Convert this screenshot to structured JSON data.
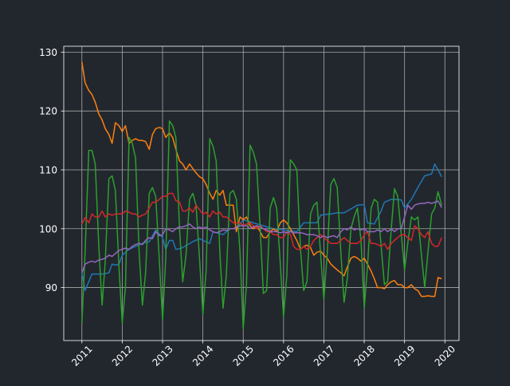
{
  "chart_data": {
    "type": "line",
    "title": "",
    "xlabel": "",
    "ylabel": "",
    "xlim": [
      2010.55,
      2020.35
    ],
    "ylim": [
      81,
      131
    ],
    "xticks": [
      2011,
      2012,
      2013,
      2014,
      2015,
      2016,
      2017,
      2018,
      2019,
      2020
    ],
    "xtick_labels": [
      "2011",
      "2012",
      "2013",
      "2014",
      "2015",
      "2016",
      "2017",
      "2018",
      "2019",
      "2020"
    ],
    "yticks": [
      90,
      100,
      110,
      120,
      130
    ],
    "ytick_labels": [
      "90",
      "100",
      "110",
      "120",
      "130"
    ],
    "grid": true,
    "legend": "none",
    "colors": {
      "background": "#22272e",
      "axes_face": "#22272e",
      "axes_edge": "#ffffff",
      "grid": "#a8a8a8",
      "text": "#ffffff"
    },
    "series": [
      {
        "color": "#1f77b4",
        "x": [
          2011.0,
          2011.08,
          2011.25,
          2011.5,
          2011.67,
          2011.75,
          2011.83,
          2011.92,
          2012.0,
          2012.17,
          2012.33,
          2012.5,
          2012.67,
          2012.83,
          2013.0,
          2013.08,
          2013.17,
          2013.25,
          2013.33,
          2013.42,
          2013.5,
          2013.75,
          2013.92,
          2014.0,
          2014.17,
          2014.25,
          2014.5,
          2014.67,
          2014.83,
          2015.0,
          2015.25,
          2015.5,
          2015.75,
          2016.0,
          2016.33,
          2016.5,
          2016.83,
          2016.92,
          2017.17,
          2017.33,
          2017.5,
          2017.83,
          2018.0,
          2018.08,
          2018.25,
          2018.42,
          2018.5,
          2018.67,
          2018.92,
          2019.0,
          2019.17,
          2019.33,
          2019.5,
          2019.67,
          2019.75,
          2019.83,
          2019.92
        ],
        "y": [
          92.5,
          89.5,
          92.3,
          92.3,
          92.5,
          94.0,
          93.8,
          94.0,
          95.5,
          96.5,
          97.0,
          97.5,
          97.8,
          99.8,
          98.5,
          96.5,
          98.0,
          98.0,
          96.5,
          96.6,
          96.8,
          97.8,
          98.3,
          98.0,
          97.5,
          99.5,
          99.0,
          100.0,
          100.0,
          101.5,
          101.0,
          100.5,
          100.0,
          99.8,
          99.5,
          101.0,
          101.0,
          102.3,
          102.5,
          102.7,
          102.7,
          104.0,
          104.1,
          101.0,
          100.8,
          103.0,
          104.5,
          105.0,
          104.9,
          103.5,
          105.0,
          107.0,
          109.0,
          109.3,
          111.0,
          110.0,
          108.8
        ]
      },
      {
        "color": "#ff7f0e",
        "x": [
          2011.0,
          2011.08,
          2011.17,
          2011.25,
          2011.33,
          2011.42,
          2011.5,
          2011.58,
          2011.67,
          2011.75,
          2011.83,
          2011.92,
          2012.0,
          2012.08,
          2012.17,
          2012.25,
          2012.33,
          2012.42,
          2012.5,
          2012.58,
          2012.67,
          2012.75,
          2012.83,
          2012.92,
          2013.0,
          2013.08,
          2013.17,
          2013.25,
          2013.33,
          2013.42,
          2013.5,
          2013.58,
          2013.67,
          2013.75,
          2013.83,
          2013.92,
          2014.0,
          2014.08,
          2014.17,
          2014.25,
          2014.33,
          2014.42,
          2014.5,
          2014.58,
          2014.67,
          2014.75,
          2014.83,
          2014.92,
          2015.0,
          2015.08,
          2015.17,
          2015.25,
          2015.33,
          2015.42,
          2015.5,
          2015.58,
          2015.67,
          2015.75,
          2015.83,
          2015.92,
          2016.0,
          2016.08,
          2016.17,
          2016.25,
          2016.33,
          2016.42,
          2016.5,
          2016.58,
          2016.67,
          2016.75,
          2016.83,
          2016.92,
          2017.0,
          2017.08,
          2017.17,
          2017.25,
          2017.33,
          2017.42,
          2017.5,
          2017.58,
          2017.67,
          2017.75,
          2017.83,
          2017.92,
          2018.0,
          2018.08,
          2018.17,
          2018.25,
          2018.33,
          2018.42,
          2018.5,
          2018.58,
          2018.67,
          2018.75,
          2018.83,
          2018.92,
          2019.0,
          2019.08,
          2019.17,
          2019.25,
          2019.33,
          2019.42,
          2019.5,
          2019.58,
          2019.67,
          2019.75,
          2019.83,
          2019.92
        ],
        "y": [
          128.3,
          124.8,
          123.5,
          122.8,
          121.5,
          119.5,
          118.5,
          117.0,
          116.0,
          114.5,
          118.0,
          117.5,
          116.5,
          117.5,
          114.5,
          115.0,
          115.3,
          115.0,
          115.0,
          114.8,
          113.5,
          116.0,
          117.0,
          117.2,
          117.0,
          115.5,
          116.3,
          115.5,
          113.5,
          111.5,
          111.0,
          110.0,
          111.0,
          110.2,
          109.5,
          108.8,
          108.5,
          107.5,
          106.0,
          105.0,
          106.5,
          105.7,
          106.5,
          104.0,
          104.0,
          104.0,
          99.5,
          102.0,
          101.5,
          102.0,
          100.5,
          100.0,
          100.5,
          99.5,
          98.5,
          98.5,
          99.5,
          100.0,
          99.5,
          101.0,
          101.5,
          101.0,
          100.0,
          99.0,
          98.0,
          96.5,
          97.0,
          97.2,
          96.8,
          95.5,
          96.0,
          96.2,
          95.5,
          95.0,
          94.0,
          93.5,
          93.0,
          92.5,
          92.0,
          93.5,
          95.0,
          95.3,
          95.0,
          94.5,
          95.0,
          94.0,
          92.8,
          91.5,
          90.0,
          90.0,
          89.8,
          90.5,
          91.0,
          91.2,
          90.5,
          90.5,
          90.0,
          90.0,
          90.5,
          89.8,
          89.5,
          88.5,
          88.5,
          88.6,
          88.5,
          88.5,
          91.7,
          91.5
        ]
      },
      {
        "color": "#2ca02c",
        "x": [
          2011.0,
          2011.08,
          2011.17,
          2011.25,
          2011.33,
          2011.42,
          2011.5,
          2011.58,
          2011.67,
          2011.75,
          2011.83,
          2011.92,
          2012.0,
          2012.08,
          2012.17,
          2012.25,
          2012.33,
          2012.42,
          2012.5,
          2012.58,
          2012.67,
          2012.75,
          2012.83,
          2012.92,
          2013.0,
          2013.08,
          2013.17,
          2013.25,
          2013.33,
          2013.42,
          2013.5,
          2013.58,
          2013.67,
          2013.75,
          2013.83,
          2013.92,
          2014.0,
          2014.08,
          2014.17,
          2014.25,
          2014.33,
          2014.42,
          2014.5,
          2014.58,
          2014.67,
          2014.75,
          2014.83,
          2014.92,
          2015.0,
          2015.08,
          2015.17,
          2015.25,
          2015.33,
          2015.42,
          2015.5,
          2015.58,
          2015.67,
          2015.75,
          2015.83,
          2015.92,
          2016.0,
          2016.08,
          2016.17,
          2016.25,
          2016.33,
          2016.42,
          2016.5,
          2016.58,
          2016.67,
          2016.75,
          2016.83,
          2016.92,
          2017.0,
          2017.08,
          2017.17,
          2017.25,
          2017.33,
          2017.42,
          2017.5,
          2017.58,
          2017.67,
          2017.75,
          2017.83,
          2017.92,
          2018.0,
          2018.08,
          2018.17,
          2018.25,
          2018.33,
          2018.42,
          2018.5,
          2018.58,
          2018.67,
          2018.75,
          2018.83,
          2018.92,
          2019.0,
          2019.08,
          2019.17,
          2019.25,
          2019.33,
          2019.42,
          2019.5,
          2019.58,
          2019.67,
          2019.75,
          2019.83,
          2019.92
        ],
        "y": [
          84.0,
          96.0,
          113.3,
          113.3,
          111.0,
          97.0,
          87.0,
          94.5,
          108.5,
          109.0,
          106.5,
          93.5,
          84.0,
          90.0,
          115.5,
          114.5,
          112.0,
          96.0,
          87.0,
          92.5,
          106.0,
          107.0,
          105.5,
          94.5,
          84.5,
          95.0,
          118.3,
          117.5,
          115.5,
          100.0,
          91.0,
          95.5,
          105.0,
          106.0,
          104.0,
          94.5,
          85.5,
          93.0,
          115.3,
          114.0,
          111.5,
          96.0,
          86.5,
          92.0,
          106.0,
          106.5,
          105.0,
          96.0,
          83.0,
          90.5,
          114.2,
          113.0,
          111.0,
          100.0,
          89.0,
          89.5,
          103.5,
          105.3,
          103.5,
          94.0,
          85.0,
          92.0,
          111.7,
          111.0,
          110.0,
          96.5,
          89.5,
          91.0,
          102.5,
          104.0,
          104.5,
          95.5,
          88.0,
          95.5,
          107.5,
          108.5,
          107.0,
          96.0,
          87.5,
          91.5,
          100.0,
          102.0,
          103.5,
          98.0,
          86.5,
          93.5,
          103.5,
          105.0,
          104.5,
          97.0,
          90.5,
          91.0,
          100.0,
          106.8,
          105.5,
          99.0,
          93.0,
          97.5,
          102.0,
          101.5,
          102.0,
          95.5,
          90.0,
          96.0,
          102.5,
          103.5,
          106.3,
          104.0
        ]
      },
      {
        "color": "#d62728",
        "x": [
          2011.0,
          2011.08,
          2011.17,
          2011.25,
          2011.33,
          2011.42,
          2011.5,
          2011.58,
          2011.67,
          2011.75,
          2011.83,
          2011.92,
          2012.0,
          2012.08,
          2012.17,
          2012.25,
          2012.33,
          2012.42,
          2012.5,
          2012.58,
          2012.67,
          2012.75,
          2012.83,
          2012.92,
          2013.0,
          2013.08,
          2013.17,
          2013.25,
          2013.33,
          2013.42,
          2013.5,
          2013.58,
          2013.67,
          2013.75,
          2013.83,
          2013.92,
          2014.0,
          2014.08,
          2014.17,
          2014.25,
          2014.33,
          2014.42,
          2014.5,
          2014.58,
          2014.67,
          2014.75,
          2014.83,
          2014.92,
          2015.0,
          2015.08,
          2015.17,
          2015.25,
          2015.33,
          2015.42,
          2015.5,
          2015.58,
          2015.67,
          2015.75,
          2015.83,
          2015.92,
          2016.0,
          2016.08,
          2016.17,
          2016.25,
          2016.33,
          2016.42,
          2016.5,
          2016.58,
          2016.67,
          2016.75,
          2016.83,
          2016.92,
          2017.0,
          2017.08,
          2017.17,
          2017.25,
          2017.33,
          2017.42,
          2017.5,
          2017.58,
          2017.67,
          2017.75,
          2017.83,
          2017.92,
          2018.0,
          2018.08,
          2018.17,
          2018.25,
          2018.33,
          2018.42,
          2018.5,
          2018.58,
          2018.67,
          2018.75,
          2018.83,
          2018.92,
          2019.0,
          2019.08,
          2019.17,
          2019.25,
          2019.33,
          2019.42,
          2019.5,
          2019.58,
          2019.67,
          2019.75,
          2019.83,
          2019.92
        ],
        "y": [
          100.8,
          101.9,
          101.0,
          102.5,
          102.0,
          102.0,
          103.0,
          102.0,
          102.5,
          102.3,
          102.5,
          102.5,
          102.5,
          103.0,
          102.8,
          102.5,
          102.5,
          102.0,
          102.3,
          102.5,
          103.5,
          104.5,
          104.5,
          105.0,
          105.5,
          105.5,
          106.0,
          106.0,
          104.8,
          104.5,
          103.0,
          103.0,
          103.5,
          102.8,
          104.0,
          103.2,
          102.5,
          102.8,
          102.0,
          103.0,
          102.5,
          102.8,
          102.0,
          102.0,
          101.5,
          101.0,
          101.0,
          101.0,
          100.5,
          100.8,
          101.0,
          100.5,
          100.0,
          100.5,
          100.0,
          99.5,
          99.5,
          99.0,
          99.0,
          98.5,
          98.5,
          99.5,
          99.0,
          97.0,
          96.5,
          96.5,
          97.0,
          96.5,
          97.0,
          98.0,
          98.5,
          99.0,
          98.5,
          98.0,
          97.5,
          97.5,
          97.5,
          98.0,
          98.5,
          98.0,
          97.5,
          97.5,
          97.5,
          98.0,
          99.0,
          99.5,
          97.5,
          97.5,
          97.3,
          97.0,
          97.5,
          96.5,
          97.5,
          98.0,
          98.5,
          99.0,
          99.0,
          98.5,
          98.0,
          100.5,
          100.0,
          99.0,
          98.5,
          99.5,
          97.5,
          97.0,
          97.0,
          98.5
        ]
      },
      {
        "color": "#9467bd",
        "x": [
          2011.0,
          2011.08,
          2011.17,
          2011.25,
          2011.33,
          2011.42,
          2011.5,
          2011.58,
          2011.67,
          2011.75,
          2011.83,
          2011.92,
          2012.0,
          2012.08,
          2012.17,
          2012.25,
          2012.33,
          2012.42,
          2012.5,
          2012.58,
          2012.67,
          2012.75,
          2012.83,
          2012.92,
          2013.0,
          2013.08,
          2013.17,
          2013.25,
          2013.33,
          2013.42,
          2013.5,
          2013.58,
          2013.67,
          2013.75,
          2013.83,
          2013.92,
          2014.0,
          2014.08,
          2014.17,
          2014.25,
          2014.33,
          2014.42,
          2014.5,
          2014.58,
          2014.67,
          2014.75,
          2014.83,
          2014.92,
          2015.0,
          2015.08,
          2015.17,
          2015.25,
          2015.33,
          2015.42,
          2015.5,
          2015.58,
          2015.67,
          2015.75,
          2015.83,
          2015.92,
          2016.0,
          2016.08,
          2016.17,
          2016.25,
          2016.33,
          2016.42,
          2016.5,
          2016.58,
          2016.67,
          2016.75,
          2016.83,
          2016.92,
          2017.0,
          2017.08,
          2017.17,
          2017.25,
          2017.33,
          2017.42,
          2017.5,
          2017.58,
          2017.67,
          2017.75,
          2017.83,
          2017.92,
          2018.0,
          2018.08,
          2018.17,
          2018.25,
          2018.33,
          2018.42,
          2018.5,
          2018.58,
          2018.67,
          2018.75,
          2018.83,
          2018.92,
          2019.0,
          2019.08,
          2019.17,
          2019.25,
          2019.33,
          2019.42,
          2019.5,
          2019.58,
          2019.67,
          2019.75,
          2019.83,
          2019.92
        ],
        "y": [
          92.5,
          94.0,
          94.3,
          94.5,
          94.3,
          94.7,
          94.8,
          95.0,
          95.5,
          95.3,
          95.8,
          96.3,
          96.5,
          96.7,
          96.5,
          97.0,
          97.3,
          97.5,
          97.3,
          98.0,
          98.5,
          98.3,
          99.5,
          98.8,
          99.0,
          100.0,
          99.8,
          99.5,
          100.0,
          100.3,
          100.3,
          100.5,
          100.8,
          100.3,
          100.0,
          100.3,
          100.0,
          100.3,
          99.8,
          99.5,
          99.3,
          99.5,
          99.8,
          99.7,
          100.0,
          100.0,
          100.3,
          100.5,
          100.5,
          100.5,
          100.0,
          100.3,
          100.5,
          100.3,
          100.0,
          99.8,
          99.5,
          99.5,
          99.5,
          99.3,
          99.5,
          99.3,
          99.5,
          99.3,
          99.3,
          99.3,
          99.2,
          99.0,
          99.0,
          99.0,
          98.8,
          98.5,
          98.8,
          98.5,
          98.7,
          98.8,
          98.5,
          99.5,
          100.0,
          99.8,
          100.3,
          99.8,
          100.0,
          99.8,
          100.0,
          99.5,
          99.5,
          99.5,
          99.8,
          99.5,
          100.0,
          99.5,
          100.0,
          99.5,
          100.0,
          100.0,
          102.0,
          104.0,
          103.3,
          104.0,
          104.2,
          104.3,
          104.3,
          104.5,
          104.3,
          104.5,
          104.7,
          103.6
        ]
      }
    ]
  }
}
